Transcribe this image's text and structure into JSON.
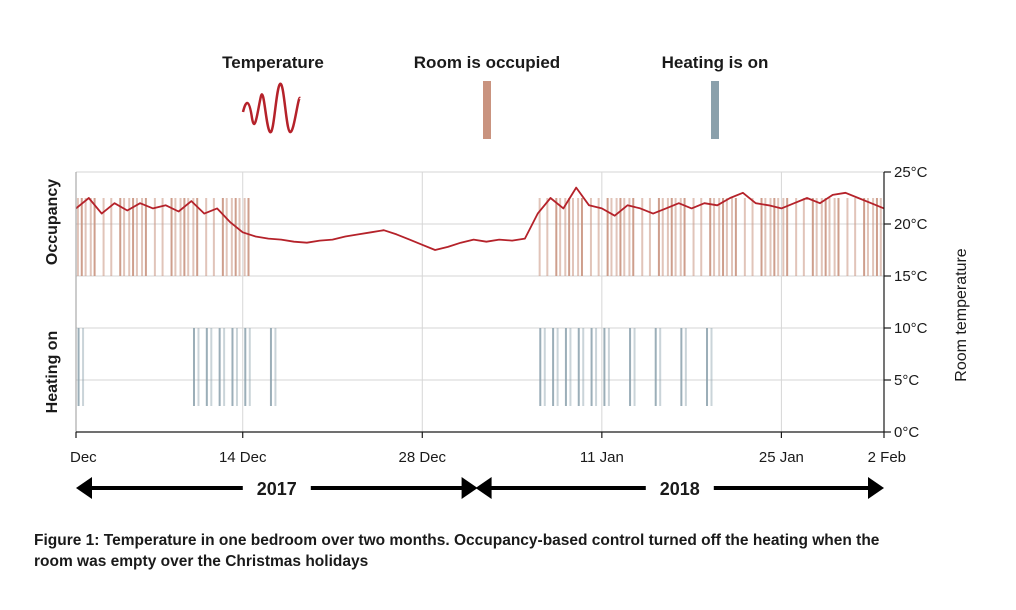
{
  "colors": {
    "temperature": "#b5222a",
    "occupied": "#c9937f",
    "heating": "#8aa0ab",
    "grid": "#d6d6d6",
    "text": "#1a1a1a"
  },
  "legend": {
    "temperature": "Temperature",
    "occupied": "Room is occupied",
    "heating": "Heating is on"
  },
  "caption": "Figure 1: Temperature in one bedroom over two months. Occupancy-based control turned off the heating when the room was empty over the Christmas holidays",
  "chart_data": {
    "type": "line",
    "x_unit": "day",
    "xlim": [
      "2017-12-01",
      "2018-02-02"
    ],
    "x_ticks": [
      {
        "date": "2017-12-01",
        "label": "Dec"
      },
      {
        "date": "2017-12-14",
        "label": "14 Dec"
      },
      {
        "date": "2017-12-28",
        "label": "28 Dec"
      },
      {
        "date": "2018-01-11",
        "label": "11 Jan"
      },
      {
        "date": "2018-01-25",
        "label": "25 Jan"
      },
      {
        "date": "2018-02-02",
        "label": "2 Feb"
      }
    ],
    "ylabel": "Room temperature",
    "ylim": [
      0,
      25
    ],
    "y_ticks": [
      {
        "value": 0,
        "label": "0°C"
      },
      {
        "value": 5,
        "label": "5°C"
      },
      {
        "value": 10,
        "label": "10°C"
      },
      {
        "value": 15,
        "label": "15°C"
      },
      {
        "value": 20,
        "label": "20°C"
      },
      {
        "value": 25,
        "label": "25°C"
      }
    ],
    "band_labels": {
      "occupancy": "Occupancy",
      "heating": "Heating on"
    },
    "years": [
      {
        "label": "2017",
        "from": "2017-12-01",
        "to": "2017-12-31"
      },
      {
        "label": "2018",
        "from": "2018-01-01",
        "to": "2018-02-02"
      }
    ],
    "grid": true,
    "series": [
      {
        "name": "Temperature",
        "x": [
          "2017-12-01",
          "2017-12-02",
          "2017-12-03",
          "2017-12-04",
          "2017-12-05",
          "2017-12-06",
          "2017-12-07",
          "2017-12-08",
          "2017-12-09",
          "2017-12-10",
          "2017-12-11",
          "2017-12-12",
          "2017-12-13",
          "2017-12-14",
          "2017-12-15",
          "2017-12-16",
          "2017-12-17",
          "2017-12-18",
          "2017-12-19",
          "2017-12-20",
          "2017-12-21",
          "2017-12-22",
          "2017-12-23",
          "2017-12-24",
          "2017-12-25",
          "2017-12-26",
          "2017-12-27",
          "2017-12-28",
          "2017-12-29",
          "2017-12-30",
          "2017-12-31",
          "2018-01-01",
          "2018-01-02",
          "2018-01-03",
          "2018-01-04",
          "2018-01-05",
          "2018-01-06",
          "2018-01-07",
          "2018-01-08",
          "2018-01-09",
          "2018-01-10",
          "2018-01-11",
          "2018-01-12",
          "2018-01-13",
          "2018-01-14",
          "2018-01-15",
          "2018-01-16",
          "2018-01-17",
          "2018-01-18",
          "2018-01-19",
          "2018-01-20",
          "2018-01-21",
          "2018-01-22",
          "2018-01-23",
          "2018-01-24",
          "2018-01-25",
          "2018-01-26",
          "2018-01-27",
          "2018-01-28",
          "2018-01-29",
          "2018-01-30",
          "2018-01-31",
          "2018-02-01",
          "2018-02-02"
        ],
        "y": [
          21.5,
          22.5,
          21.0,
          22.0,
          21.3,
          22.0,
          21.5,
          21.8,
          21.2,
          22.2,
          21.0,
          21.5,
          20.2,
          19.2,
          18.8,
          18.6,
          18.5,
          18.3,
          18.2,
          18.4,
          18.5,
          18.8,
          19.0,
          19.2,
          19.4,
          19.0,
          18.5,
          18.0,
          17.5,
          17.8,
          18.2,
          18.5,
          18.3,
          18.5,
          18.4,
          18.6,
          21.0,
          22.5,
          21.5,
          23.5,
          21.8,
          21.5,
          20.8,
          21.8,
          21.5,
          21.0,
          21.5,
          22.0,
          21.5,
          22.0,
          21.8,
          22.5,
          23.0,
          22.0,
          21.8,
          21.5,
          22.0,
          22.5,
          22.0,
          22.8,
          23.0,
          22.5,
          22.0,
          21.5
        ]
      }
    ],
    "occupancy_bars": [
      "2017-12-01",
      "2017-12-02",
      "2017-12-03",
      "2017-12-04",
      "2017-12-05",
      "2017-12-06",
      "2017-12-07",
      "2017-12-08",
      "2017-12-09",
      "2017-12-10",
      "2017-12-11",
      "2017-12-12",
      "2017-12-13",
      "2017-12-14",
      "2018-01-06",
      "2018-01-07",
      "2018-01-08",
      "2018-01-09",
      "2018-01-10",
      "2018-01-11",
      "2018-01-12",
      "2018-01-13",
      "2018-01-14",
      "2018-01-15",
      "2018-01-16",
      "2018-01-17",
      "2018-01-18",
      "2018-01-19",
      "2018-01-20",
      "2018-01-21",
      "2018-01-22",
      "2018-01-23",
      "2018-01-24",
      "2018-01-25",
      "2018-01-26",
      "2018-01-27",
      "2018-01-28",
      "2018-01-29",
      "2018-01-30",
      "2018-01-31",
      "2018-02-01"
    ],
    "heating_bars": [
      "2017-12-01",
      "2017-12-10",
      "2017-12-11",
      "2017-12-12",
      "2017-12-13",
      "2017-12-14",
      "2017-12-16",
      "2018-01-06",
      "2018-01-07",
      "2018-01-08",
      "2018-01-09",
      "2018-01-10",
      "2018-01-11",
      "2018-01-13",
      "2018-01-15",
      "2018-01-17",
      "2018-01-19"
    ]
  }
}
